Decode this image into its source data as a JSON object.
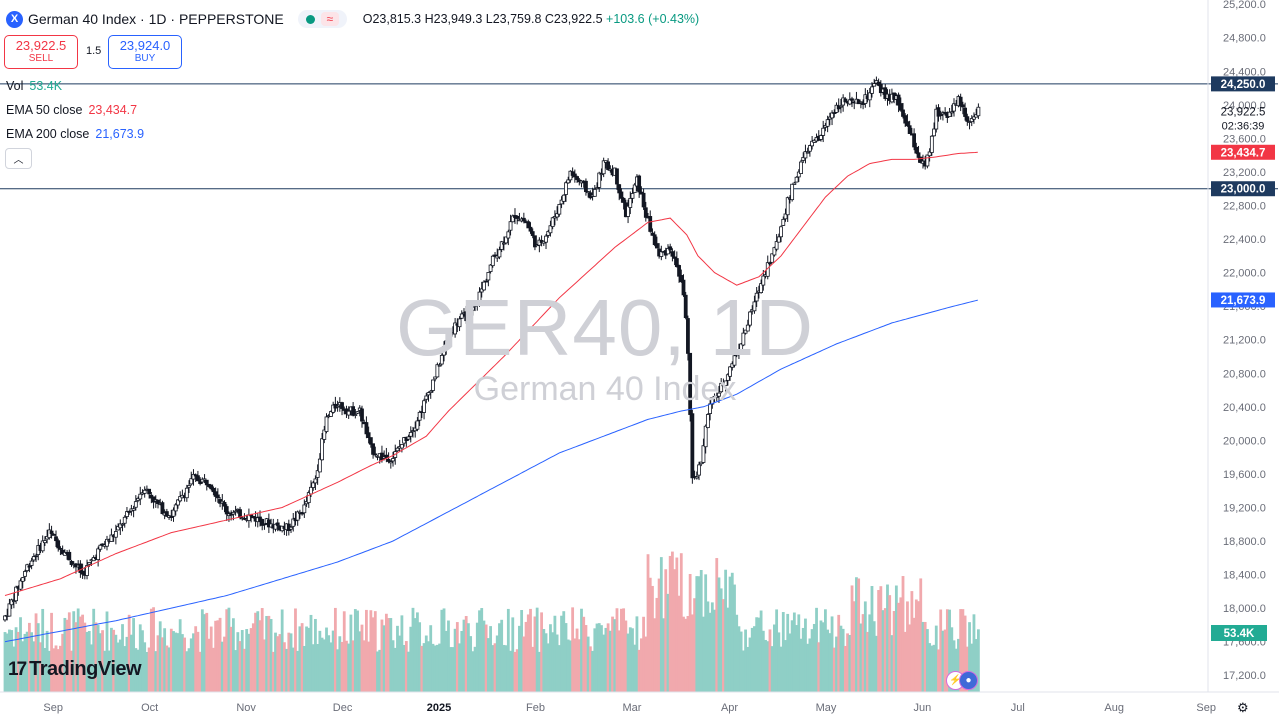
{
  "header": {
    "symbol_icon": "X",
    "title": "German 40 Index · 1D · PEPPERSTONE",
    "wave_icon": "≈",
    "ohlc": {
      "open": "O23,815.3",
      "high": "H23,949.3",
      "low": "L23,759.8",
      "close": "C23,922.5",
      "change": "+103.6 (+0.43%)"
    }
  },
  "trade": {
    "sell_price": "23,922.5",
    "sell_label": "SELL",
    "spread": "1.5",
    "buy_price": "23,924.0",
    "buy_label": "BUY"
  },
  "indicators": {
    "vol_label": "Vol",
    "vol_value": "53.4K",
    "ema50_label": "EMA 50 close",
    "ema50_value": "23,434.7",
    "ema200_label": "EMA 200 close",
    "ema200_value": "21,673.9",
    "collapse_glyph": "︿"
  },
  "watermark": {
    "symbol": "GER40, 1D",
    "name": "German 40 Index"
  },
  "logo": {
    "mark": "17",
    "text": "TradingView"
  },
  "colors": {
    "up": "#089981",
    "down": "#131722",
    "ema50": "#f23645",
    "ema200": "#2962ff",
    "hline": "#1e3a5f",
    "vol_up": "#8fcfc6",
    "vol_down": "#f1a9ad"
  },
  "icons": {
    "settings": "gear-icon",
    "symbol": "x-icon"
  },
  "chart_data": {
    "type": "candlestick",
    "symbol": "German 40 Index",
    "interval": "1D",
    "y_ticks": [
      "25,200.0",
      "24,800.0",
      "24,400.0",
      "24,000.0",
      "23,600.0",
      "23,200.0",
      "22,800.0",
      "22,400.0",
      "22,000.0",
      "21,600.0",
      "21,200.0",
      "20,800.0",
      "20,400.0",
      "20,000.0",
      "19,600.0",
      "19,200.0",
      "18,800.0",
      "18,400.0",
      "18,000.0",
      "17,600.0",
      "17,200.0"
    ],
    "x_ticks": [
      "Sep",
      "Oct",
      "Nov",
      "Dec",
      "2025",
      "Feb",
      "Mar",
      "Apr",
      "May",
      "Jun",
      "Jul",
      "Aug",
      "Sep"
    ],
    "bold_ticks": [
      "2025"
    ],
    "ylim": [
      17000,
      25250
    ],
    "xlim": [
      0,
      104
    ],
    "month_starts": [
      0,
      8.7,
      17.4,
      26.1,
      34.8,
      43.5,
      52.2,
      61,
      69.7,
      78.4,
      87,
      95.7,
      104
    ],
    "label_offset": 4.35,
    "data_end": 83.8,
    "hlines": [
      {
        "value": 24250,
        "label": "24,250.0"
      },
      {
        "value": 23000,
        "label": "23,000.0"
      }
    ],
    "price_label": {
      "value": 23922.5,
      "text": "23,922.5",
      "sub": "02:36:39"
    },
    "ema_labels": [
      {
        "value": 23434.7,
        "text": "23,434.7",
        "color": "#f23645"
      },
      {
        "value": 21673.9,
        "text": "21,673.9",
        "color": "#2962ff"
      }
    ],
    "volume_label": "53.4K",
    "anchors": [
      [
        0,
        17900
      ],
      [
        2,
        18500
      ],
      [
        4,
        18900
      ],
      [
        5.5,
        18650
      ],
      [
        7,
        18400
      ],
      [
        8.5,
        18700
      ],
      [
        10,
        18900
      ],
      [
        11.5,
        19200
      ],
      [
        12.5,
        19450
      ],
      [
        14,
        19200
      ],
      [
        15,
        19100
      ],
      [
        16,
        19350
      ],
      [
        17,
        19550
      ],
      [
        18.5,
        19500
      ],
      [
        20,
        19150
      ],
      [
        22,
        19100
      ],
      [
        24,
        19000
      ],
      [
        25.5,
        18950
      ],
      [
        27,
        19200
      ],
      [
        28,
        19550
      ],
      [
        29,
        20250
      ],
      [
        30,
        20450
      ],
      [
        31,
        20350
      ],
      [
        32,
        20350
      ],
      [
        33,
        19900
      ],
      [
        34,
        19800
      ],
      [
        35,
        19800
      ],
      [
        36,
        20000
      ],
      [
        37,
        20200
      ],
      [
        38,
        20500
      ],
      [
        39,
        20850
      ],
      [
        40,
        21250
      ],
      [
        41,
        21450
      ],
      [
        42,
        21500
      ],
      [
        43,
        21800
      ],
      [
        44,
        22150
      ],
      [
        45,
        22400
      ],
      [
        46,
        22700
      ],
      [
        47,
        22600
      ],
      [
        48,
        22300
      ],
      [
        49,
        22500
      ],
      [
        50,
        22800
      ],
      [
        51,
        23200
      ],
      [
        52,
        23050
      ],
      [
        53,
        22900
      ],
      [
        54,
        23300
      ],
      [
        55,
        23200
      ],
      [
        56,
        22700
      ],
      [
        57,
        23100
      ],
      [
        58,
        22600
      ],
      [
        59,
        22200
      ],
      [
        60,
        22300
      ],
      [
        61,
        21900
      ],
      [
        61.5,
        21400
      ],
      [
        62,
        19500
      ],
      [
        62.7,
        19700
      ],
      [
        63.5,
        20400
      ],
      [
        64.5,
        20600
      ],
      [
        65.5,
        20900
      ],
      [
        66.5,
        21200
      ],
      [
        67.5,
        21600
      ],
      [
        68.5,
        22000
      ],
      [
        69.5,
        22300
      ],
      [
        70.5,
        22800
      ],
      [
        71.5,
        23200
      ],
      [
        72.5,
        23500
      ],
      [
        73.5,
        23600
      ],
      [
        74.5,
        23900
      ],
      [
        75.5,
        24050
      ],
      [
        76.5,
        24000
      ],
      [
        77.5,
        24050
      ],
      [
        78.5,
        24250
      ],
      [
        79.5,
        24100
      ],
      [
        80.5,
        24050
      ],
      [
        81.5,
        23700
      ],
      [
        82.5,
        23350
      ],
      [
        83,
        23250
      ],
      [
        83.5,
        23500
      ],
      [
        84,
        23900
      ],
      [
        85,
        23900
      ],
      [
        86,
        24050
      ],
      [
        87,
        23800
      ],
      [
        87.5,
        23815
      ],
      [
        87.8,
        23922.5
      ]
    ],
    "ema50": [
      [
        0,
        18150
      ],
      [
        5,
        18350
      ],
      [
        10,
        18650
      ],
      [
        15,
        18900
      ],
      [
        20,
        19050
      ],
      [
        25,
        19200
      ],
      [
        30,
        19500
      ],
      [
        33,
        19700
      ],
      [
        35,
        19820
      ],
      [
        38,
        20050
      ],
      [
        40,
        20350
      ],
      [
        45,
        21000
      ],
      [
        50,
        21700
      ],
      [
        55,
        22300
      ],
      [
        58,
        22600
      ],
      [
        60,
        22650
      ],
      [
        61.5,
        22450
      ],
      [
        62.5,
        22200
      ],
      [
        64,
        22000
      ],
      [
        66,
        21850
      ],
      [
        68,
        21950
      ],
      [
        70,
        22200
      ],
      [
        72,
        22550
      ],
      [
        74,
        22900
      ],
      [
        76,
        23150
      ],
      [
        78,
        23300
      ],
      [
        80,
        23350
      ],
      [
        82,
        23350
      ],
      [
        84,
        23380
      ],
      [
        86,
        23420
      ],
      [
        87.8,
        23434.7
      ]
    ],
    "ema200": [
      [
        0,
        17600
      ],
      [
        10,
        17850
      ],
      [
        20,
        18150
      ],
      [
        30,
        18550
      ],
      [
        35,
        18800
      ],
      [
        40,
        19150
      ],
      [
        45,
        19500
      ],
      [
        50,
        19850
      ],
      [
        55,
        20100
      ],
      [
        58,
        20250
      ],
      [
        61,
        20350
      ],
      [
        63,
        20400
      ],
      [
        66,
        20550
      ],
      [
        70,
        20850
      ],
      [
        75,
        21150
      ],
      [
        80,
        21400
      ],
      [
        85,
        21580
      ],
      [
        87.8,
        21673.9
      ]
    ]
  }
}
